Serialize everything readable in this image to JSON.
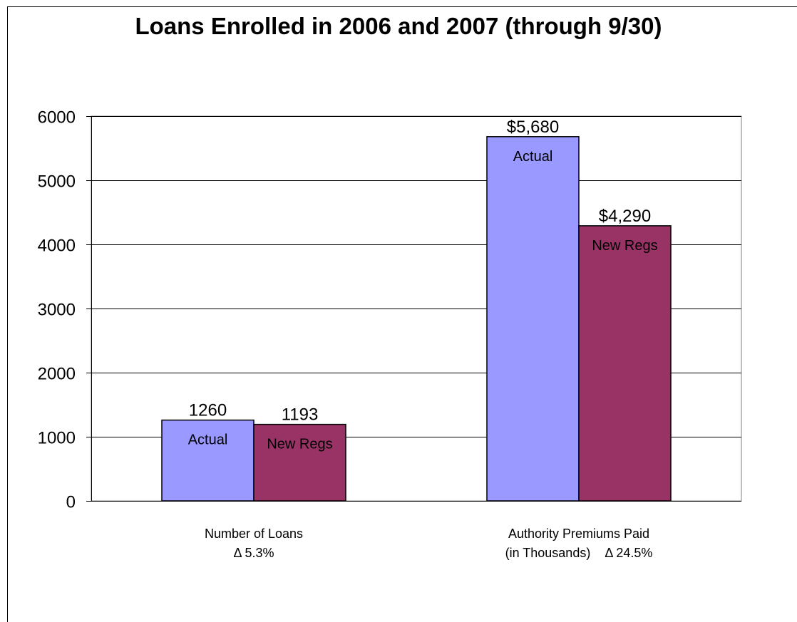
{
  "chart_data": {
    "type": "bar",
    "title": "Loans Enrolled in 2006 and 2007 (through 9/30)",
    "ylim": [
      0,
      6000
    ],
    "yticks": [
      0,
      1000,
      2000,
      3000,
      4000,
      5000,
      6000
    ],
    "grid": true,
    "categories": [
      {
        "line1": "Number of Loans",
        "line2": "Δ 5.3%"
      },
      {
        "line1": "Authority Premiums Paid",
        "line2": "(in Thousands)    Δ 24.5%"
      }
    ],
    "series": [
      {
        "name": "Actual",
        "color": "#9999ff",
        "values": [
          1260,
          5680
        ],
        "value_labels": [
          "1260",
          "$5,680"
        ]
      },
      {
        "name": "New Regs",
        "color": "#993366",
        "values": [
          1193,
          4290
        ],
        "value_labels": [
          "1193",
          "$4,290"
        ]
      }
    ]
  }
}
